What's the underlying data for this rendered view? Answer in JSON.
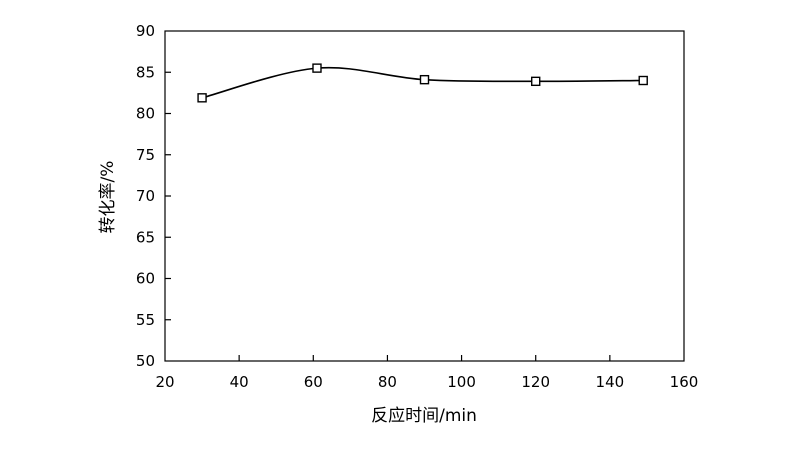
{
  "chart_data": {
    "type": "line",
    "title": "",
    "xlabel": "反应时间/min",
    "ylabel": "转化率/%",
    "xlim": [
      20,
      160
    ],
    "ylim": [
      50,
      90
    ],
    "xticks": [
      20,
      40,
      60,
      80,
      100,
      120,
      140,
      160
    ],
    "yticks": [
      50,
      55,
      60,
      65,
      70,
      75,
      80,
      85,
      90
    ],
    "grid": false,
    "legend": "none",
    "series": [
      {
        "marker": "open-square",
        "smooth": true,
        "color": "#000000",
        "x": [
          30,
          61,
          90,
          120,
          149
        ],
        "y": [
          81.9,
          85.5,
          84.1,
          83.9,
          84.0
        ]
      }
    ]
  }
}
